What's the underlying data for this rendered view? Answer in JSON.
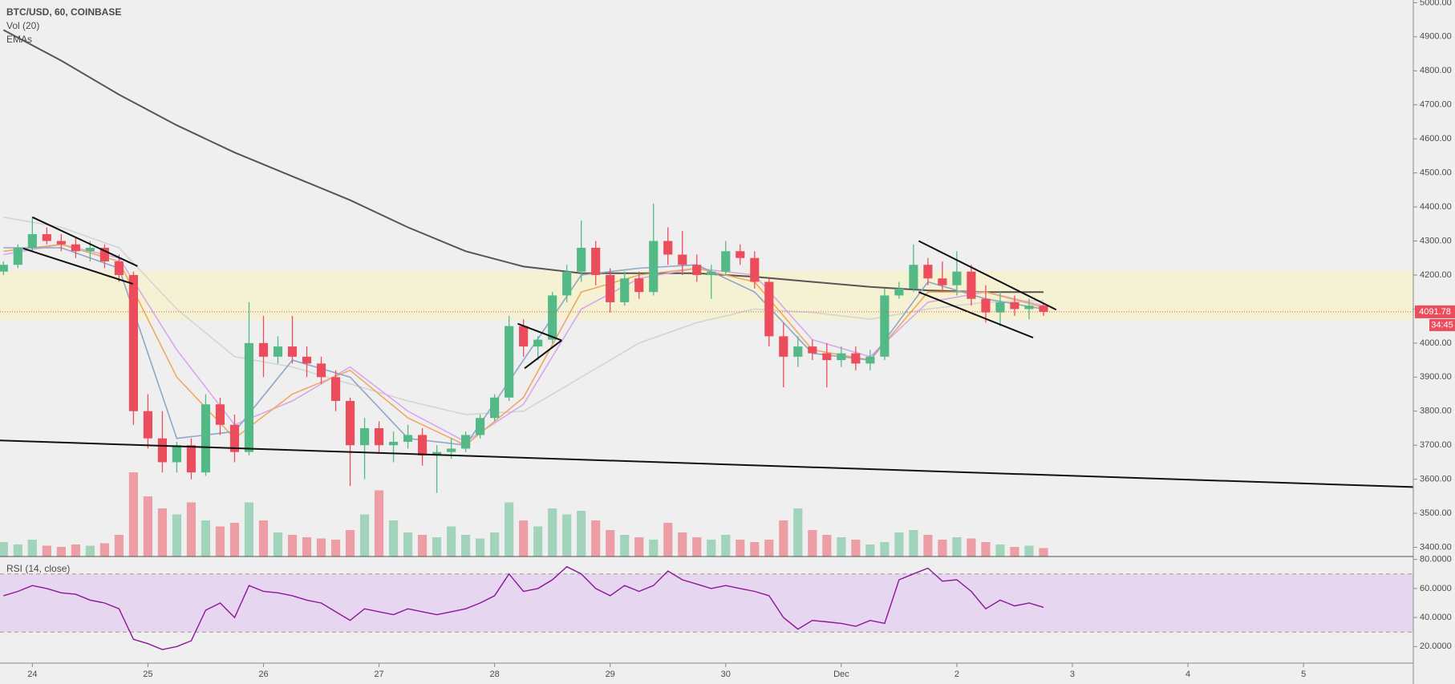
{
  "chart_data": [
    {
      "type": "candlestick",
      "title": "BTC/USD, 60, COINBASE",
      "indicator_labels": [
        "Vol (20)",
        "EMAs"
      ],
      "up_color": "#53b987",
      "down_color": "#eb4d5c",
      "xlim": [
        23.72,
        35.95
      ],
      "xticks": [
        24,
        25,
        26,
        27,
        28,
        29,
        30,
        {
          "value": 31,
          "label": "Dec"
        },
        {
          "value": 32,
          "label": "2"
        },
        {
          "value": 33,
          "label": "3"
        },
        {
          "value": 34,
          "label": "4"
        },
        {
          "value": 35,
          "label": "5"
        }
      ],
      "ylim": [
        3373,
        5008
      ],
      "yticks": [
        {
          "value": 3400,
          "label": "3400.00"
        },
        {
          "value": 3500,
          "label": "3500.00"
        },
        {
          "value": 3600,
          "label": "3600.00"
        },
        {
          "value": 3700,
          "label": "3700.00"
        },
        {
          "value": 3800,
          "label": "3800.00"
        },
        {
          "value": 3900,
          "label": "3900.00"
        },
        {
          "value": 4000,
          "label": "4000.00"
        },
        {
          "value": 4100,
          "label": "4100.00"
        },
        {
          "value": 4200,
          "label": "4200.00"
        },
        {
          "value": 4300,
          "label": "4300.00"
        },
        {
          "value": 4400,
          "label": "4400.00"
        },
        {
          "value": 4500,
          "label": "4500.00"
        },
        {
          "value": 4600,
          "label": "4600.00"
        },
        {
          "value": 4700,
          "label": "4700.00"
        },
        {
          "value": 4800,
          "label": "4800.00"
        },
        {
          "value": 4900,
          "label": "4900.00"
        },
        {
          "value": 5000,
          "label": "5000.00"
        }
      ],
      "x": [
        23.75,
        23.875,
        24,
        24.125,
        24.25,
        24.375,
        24.5,
        24.625,
        24.75,
        24.875,
        25,
        25.125,
        25.25,
        25.375,
        25.5,
        25.625,
        25.75,
        25.875,
        26,
        26.125,
        26.25,
        26.375,
        26.5,
        26.625,
        26.75,
        26.875,
        27,
        27.125,
        27.25,
        27.375,
        27.5,
        27.625,
        27.75,
        27.875,
        28,
        28.125,
        28.25,
        28.375,
        28.5,
        28.625,
        28.75,
        28.875,
        29,
        29.125,
        29.25,
        29.375,
        29.5,
        29.625,
        29.75,
        29.875,
        30,
        30.125,
        30.25,
        30.375,
        30.5,
        30.625,
        30.75,
        30.875,
        31,
        31.125,
        31.25,
        31.375,
        31.5,
        31.625,
        31.75,
        31.875,
        32,
        32.125,
        32.25,
        32.375,
        32.5,
        32.625,
        32.75
      ],
      "open": [
        4210,
        4230,
        4280,
        4320,
        4300,
        4290,
        4270,
        4280,
        4240,
        4200,
        3800,
        3720,
        3650,
        3700,
        3620,
        3820,
        3760,
        3680,
        4000,
        3960,
        3990,
        3960,
        3940,
        3900,
        3830,
        3700,
        3750,
        3700,
        3710,
        3730,
        3670,
        3680,
        3690,
        3730,
        3780,
        3840,
        4050,
        3990,
        4010,
        4140,
        4210,
        4280,
        4200,
        4120,
        4190,
        4150,
        4300,
        4260,
        4230,
        4200,
        4210,
        4270,
        4250,
        4180,
        4020,
        3960,
        3990,
        3970,
        3950,
        3970,
        3940,
        3960,
        4140,
        4160,
        4230,
        4190,
        4170,
        4210,
        4130,
        4090,
        4120,
        4100,
        4110
      ],
      "high": [
        4240,
        4290,
        4370,
        4340,
        4320,
        4310,
        4300,
        4290,
        4260,
        4210,
        3850,
        3800,
        3710,
        3720,
        3850,
        3840,
        3790,
        4120,
        4080,
        4020,
        4080,
        3990,
        3960,
        3920,
        3840,
        3780,
        3770,
        3740,
        3760,
        3750,
        3700,
        3720,
        3740,
        3790,
        3850,
        4080,
        4070,
        4020,
        4150,
        4230,
        4360,
        4300,
        4220,
        4210,
        4210,
        4410,
        4340,
        4330,
        4260,
        4230,
        4300,
        4290,
        4270,
        4190,
        4060,
        4020,
        4010,
        4000,
        3990,
        3990,
        3980,
        4160,
        4180,
        4290,
        4250,
        4240,
        4270,
        4230,
        4170,
        4150,
        4140,
        4130,
        4120
      ],
      "low": [
        4200,
        4220,
        4270,
        4290,
        4270,
        4250,
        4240,
        4220,
        4180,
        3760,
        3690,
        3620,
        3620,
        3600,
        3610,
        3730,
        3650,
        3670,
        3900,
        3940,
        3940,
        3900,
        3880,
        3800,
        3580,
        3600,
        3680,
        3650,
        3690,
        3640,
        3560,
        3660,
        3680,
        3720,
        3770,
        3830,
        3960,
        3950,
        4000,
        4120,
        4180,
        4170,
        4090,
        4110,
        4130,
        4140,
        4230,
        4200,
        4180,
        4130,
        4200,
        4230,
        4160,
        3990,
        3870,
        3930,
        3950,
        3870,
        3930,
        3920,
        3920,
        3950,
        4130,
        4150,
        4170,
        4150,
        4140,
        4110,
        4060,
        4050,
        4080,
        4070,
        4080
      ],
      "close": [
        4230,
        4280,
        4320,
        4300,
        4290,
        4270,
        4280,
        4240,
        4200,
        3800,
        3720,
        3650,
        3700,
        3620,
        3820,
        3760,
        3680,
        4000,
        3960,
        3990,
        3960,
        3940,
        3900,
        3830,
        3700,
        3750,
        3700,
        3710,
        3730,
        3670,
        3680,
        3690,
        3730,
        3780,
        3840,
        4050,
        3990,
        4010,
        4140,
        4210,
        4280,
        4200,
        4120,
        4190,
        4150,
        4300,
        4260,
        4230,
        4200,
        4210,
        4270,
        4250,
        4180,
        4020,
        3960,
        3990,
        3970,
        3950,
        3970,
        3940,
        3960,
        4140,
        4160,
        4230,
        4190,
        4170,
        4210,
        4130,
        4090,
        4120,
        4100,
        4110,
        4091.78
      ],
      "volume": [
        12,
        10,
        14,
        9,
        8,
        10,
        9,
        11,
        18,
        70,
        50,
        40,
        35,
        45,
        30,
        25,
        28,
        45,
        30,
        20,
        18,
        16,
        15,
        14,
        22,
        35,
        55,
        30,
        20,
        18,
        16,
        25,
        18,
        15,
        20,
        45,
        30,
        25,
        40,
        35,
        38,
        30,
        22,
        18,
        16,
        14,
        28,
        20,
        16,
        14,
        18,
        14,
        12,
        14,
        30,
        40,
        22,
        18,
        16,
        14,
        10,
        12,
        20,
        22,
        18,
        14,
        16,
        15,
        12,
        10,
        8,
        9,
        7
      ],
      "countdown": "34:45",
      "ema": {
        "x": [
          23.75,
          24.25,
          24.75,
          25.25,
          25.75,
          26.25,
          26.75,
          27.25,
          27.75,
          28.25,
          28.75,
          29.25,
          29.75,
          30.25,
          30.75,
          31.25,
          31.75,
          32.25,
          32.75
        ],
        "series": [
          {
            "color": "#555555",
            "values": [
              4920,
              4830,
              4730,
              4640,
              4560,
              4490,
              4420,
              4340,
              4270,
              4225,
              4205,
              4205,
              4205,
              4195,
              4180,
              4165,
              4155,
              4150,
              4150
            ]
          },
          {
            "color": "#d4d4d4",
            "values": [
              4370,
              4340,
              4280,
              4100,
              3960,
              3930,
              3880,
              3830,
              3790,
              3800,
              3900,
              4000,
              4060,
              4100,
              4090,
              4070,
              4100,
              4120,
              4125
            ]
          },
          {
            "color": "#d9a6f0",
            "values": [
              4260,
              4290,
              4250,
              3980,
              3760,
              3830,
              3930,
              3800,
              3710,
              3820,
              4100,
              4190,
              4220,
              4200,
              4010,
              3960,
              4120,
              4150,
              4110
            ]
          },
          {
            "color": "#f0a860",
            "values": [
              4270,
              4290,
              4240,
              3900,
              3720,
              3850,
              3920,
              3780,
              3700,
              3840,
              4150,
              4200,
              4220,
              4180,
              3980,
              3950,
              4150,
              4150,
              4105
            ]
          },
          {
            "color": "#8fa6c8",
            "values": [
              4280,
              4280,
              4220,
              3720,
              3740,
              3950,
              3900,
              3720,
              3700,
              3950,
              4200,
              4220,
              4230,
              4150,
              3970,
              3950,
              4180,
              4130,
              4100
            ]
          }
        ]
      },
      "zone": [
        4068,
        4212
      ],
      "trend_lines": [
        {
          "x": [
            24.0,
            24.91
          ],
          "y": [
            4370,
            4226
          ]
        },
        {
          "x": [
            23.92,
            24.87
          ],
          "y": [
            4278,
            4174
          ]
        },
        {
          "x": [
            23.72,
            35.95
          ],
          "y": [
            3714,
            3577
          ]
        },
        {
          "x": [
            28.2,
            28.58
          ],
          "y": [
            4057,
            4008
          ]
        },
        {
          "x": [
            28.26,
            28.58
          ],
          "y": [
            3926,
            4008
          ]
        },
        {
          "x": [
            31.67,
            32.86
          ],
          "y": [
            4300,
            4098
          ]
        },
        {
          "x": [
            31.67,
            32.66
          ],
          "y": [
            4150,
            4016
          ]
        }
      ]
    },
    {
      "type": "line",
      "title": "RSI (14, close)",
      "color": "#8e1599",
      "ylim": [
        8.6,
        82
      ],
      "yticks": [
        {
          "value": 20,
          "label": "20.0000"
        },
        {
          "value": 40,
          "label": "40.0000"
        },
        {
          "value": 60,
          "label": "60.0000"
        },
        {
          "value": 80,
          "label": "80.0000"
        }
      ],
      "levels": [
        30,
        70
      ],
      "values": [
        55,
        58,
        62,
        60,
        57,
        56,
        52,
        50,
        46,
        25,
        22,
        18,
        20,
        24,
        45,
        50,
        40,
        62,
        58,
        57,
        55,
        52,
        50,
        44,
        38,
        46,
        44,
        42,
        46,
        44,
        42,
        44,
        46,
        50,
        55,
        70,
        58,
        60,
        66,
        75,
        70,
        60,
        55,
        62,
        58,
        62,
        72,
        66,
        63,
        60,
        62,
        60,
        58,
        55,
        40,
        32,
        38,
        37,
        36,
        34,
        38,
        36,
        66,
        70,
        74,
        65,
        66,
        58,
        46,
        52,
        48,
        50,
        47
      ]
    }
  ]
}
